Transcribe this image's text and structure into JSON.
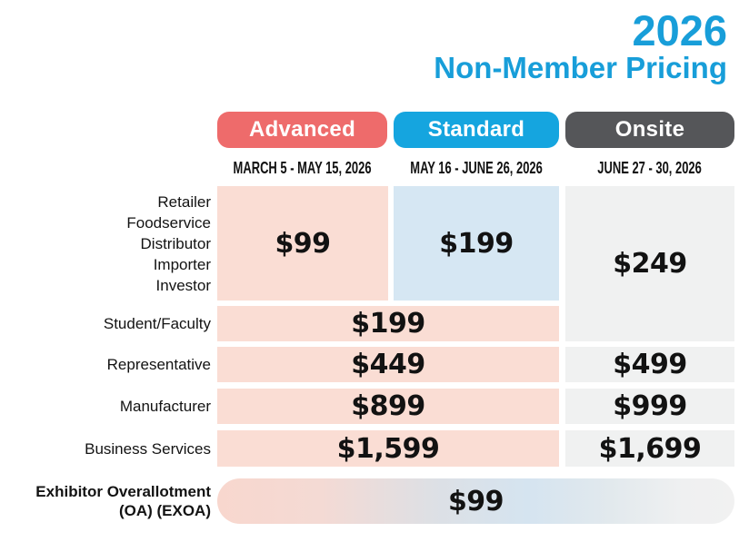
{
  "header": {
    "year": "2026",
    "title": "Non-Member Pricing"
  },
  "columns": [
    {
      "label": "Advanced",
      "dates": "MARCH 5 - MAY 15, 2026"
    },
    {
      "label": "Standard",
      "dates": "MAY 16 - JUNE 26, 2026"
    },
    {
      "label": "Onsite",
      "dates": "JUNE 27 - 30, 2026"
    }
  ],
  "rows": {
    "attendee": {
      "labels": [
        "Retailer",
        "Foodservice",
        "Distributor",
        "Importer",
        "Investor"
      ],
      "advanced": "$99",
      "standard": "$199",
      "onsite": "$249"
    },
    "student": {
      "label": "Student/Faculty",
      "advanced_standard": "$199"
    },
    "representative": {
      "label": "Representative",
      "advanced_standard": "$449",
      "onsite": "$499"
    },
    "manufacturer": {
      "label": "Manufacturer",
      "advanced_standard": "$899",
      "onsite": "$999"
    },
    "business": {
      "label": "Business Services",
      "advanced_standard": "$1,599",
      "onsite": "$1,699"
    },
    "exoa": {
      "label_line1": "Exhibitor Overallotment",
      "label_line2": "(OA) (EXOA)",
      "all_columns": "$99"
    }
  },
  "colors": {
    "accent_blue": "#189ED9",
    "advanced_pill": "#EE6B6B",
    "standard_pill": "#15A5DF",
    "onsite_pill": "#555659",
    "advanced_cell": "#FADDD4",
    "standard_cell": "#D6E7F3",
    "onsite_cell": "#F0F1F1"
  },
  "chart_data": {
    "type": "table",
    "title": "2026 Non-Member Pricing",
    "columns": [
      "Advanced",
      "Standard",
      "Onsite"
    ],
    "column_dates": [
      "MARCH 5 - MAY 15, 2026",
      "MAY 16 - JUNE 26, 2026",
      "JUNE 27 - 30, 2026"
    ],
    "rows": [
      {
        "label": "Retailer Foodservice Distributor Importer Investor",
        "advanced": "$99",
        "standard": "$199",
        "onsite": "$249"
      },
      {
        "label": "Student/Faculty",
        "advanced": "$199",
        "standard": "$199",
        "onsite": "$249"
      },
      {
        "label": "Representative",
        "advanced": "$449",
        "standard": "$449",
        "onsite": "$499"
      },
      {
        "label": "Manufacturer",
        "advanced": "$899",
        "standard": "$899",
        "onsite": "$999"
      },
      {
        "label": "Business Services",
        "advanced": "$1,599",
        "standard": "$1,599",
        "onsite": "$1,699"
      },
      {
        "label": "Exhibitor Overallotment (OA) (EXOA)",
        "advanced": "$99",
        "standard": "$99",
        "onsite": "$99"
      }
    ]
  }
}
